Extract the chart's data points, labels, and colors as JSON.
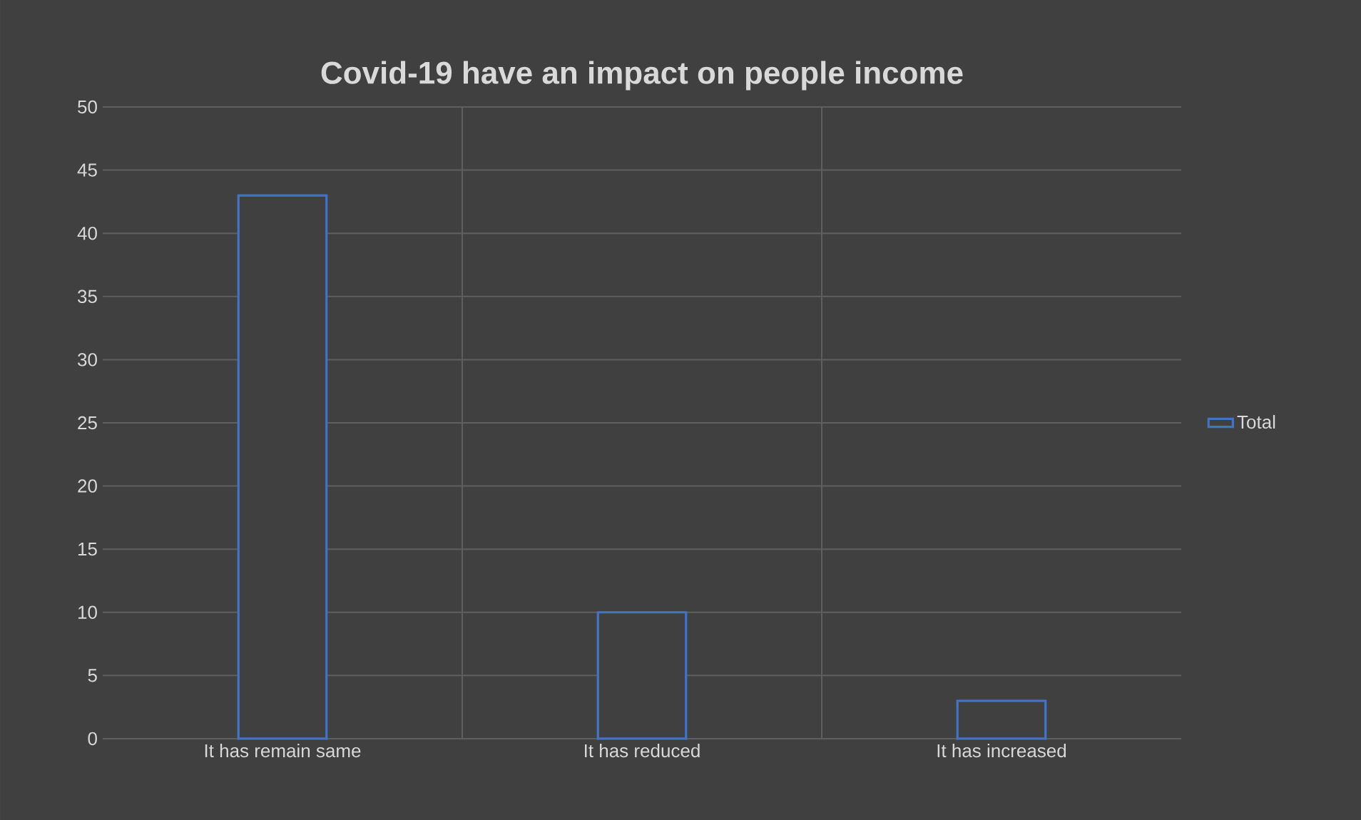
{
  "chart_data": {
    "type": "bar",
    "title": "Covid-19 have an impact on people income",
    "categories": [
      "It has remain same",
      "It has reduced",
      "It has increased"
    ],
    "series": [
      {
        "name": "Total",
        "color": "#4472c4",
        "values": [
          43,
          10,
          3
        ]
      }
    ],
    "ylim": [
      0,
      50
    ],
    "yticks": [
      0,
      5,
      10,
      15,
      20,
      25,
      30,
      35,
      40,
      45,
      50
    ],
    "grid": true,
    "legend": "right"
  }
}
